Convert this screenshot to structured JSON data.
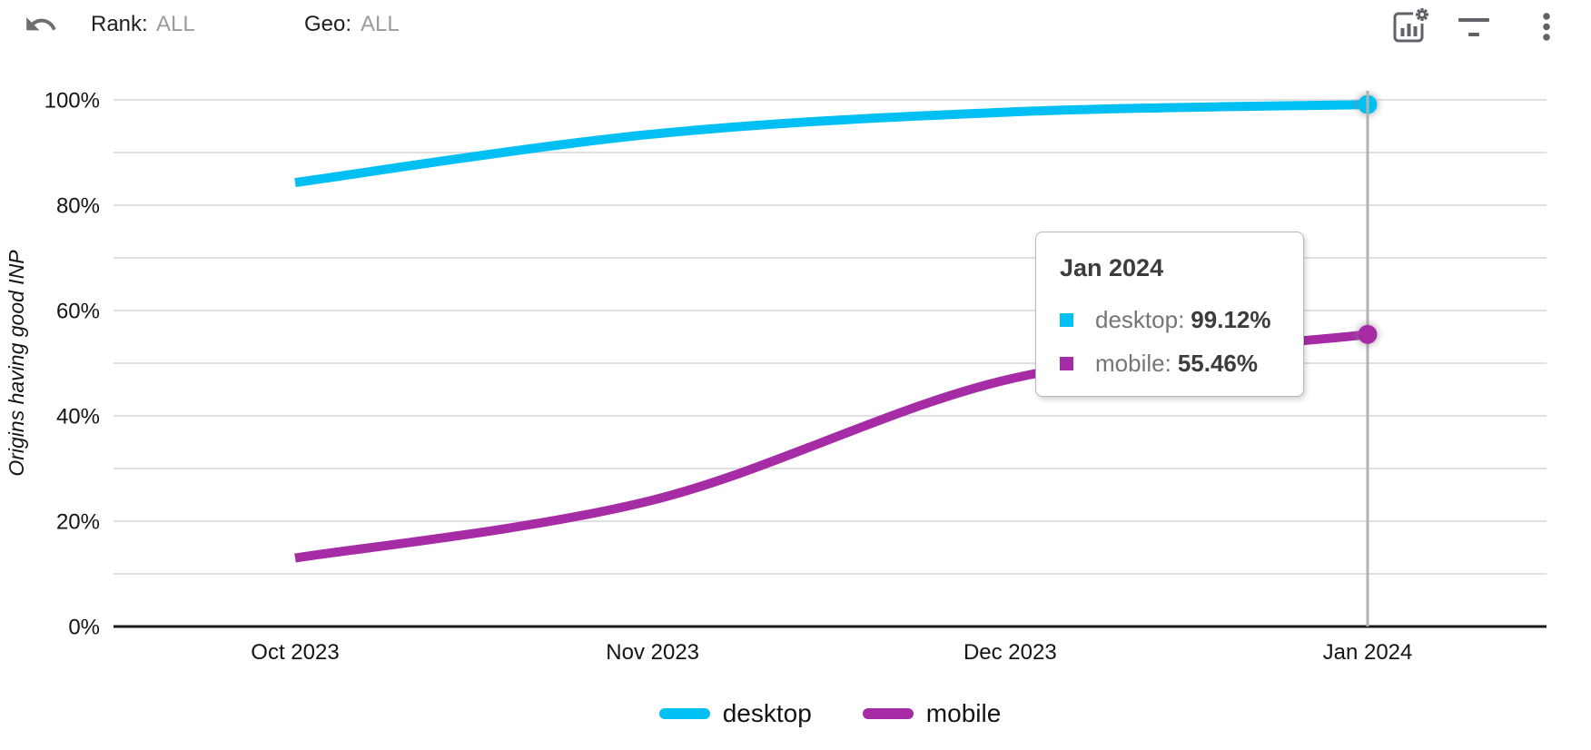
{
  "toolbar": {
    "rank_label": "Rank:",
    "rank_value": "ALL",
    "geo_label": "Geo:",
    "geo_value": "ALL",
    "icons": [
      "undo-icon",
      "chart-settings-icon",
      "filter-icon",
      "more-vert-icon"
    ]
  },
  "chart_data": {
    "type": "line",
    "title": "",
    "xlabel": "",
    "ylabel": "Origins having good INP",
    "categories": [
      "Oct 2023",
      "Nov 2023",
      "Dec 2023",
      "Jan 2024"
    ],
    "series": [
      {
        "name": "desktop",
        "color": "#00BFF2",
        "values": [
          84.3,
          93.5,
          97.7,
          99.12
        ]
      },
      {
        "name": "mobile",
        "color": "#A62CA6",
        "values": [
          13.0,
          24.0,
          47.0,
          55.46
        ]
      }
    ],
    "ylim": [
      0,
      100
    ],
    "grid_step_pct": 10,
    "ytick_labels": [
      "0%",
      "20%",
      "40%",
      "60%",
      "80%",
      "100%"
    ],
    "ytick_values": [
      0,
      20,
      40,
      60,
      80,
      100
    ],
    "grid": true,
    "legend_position": "bottom",
    "curve": "smooth",
    "selected_point": {
      "category": "Jan 2024",
      "index": 3,
      "desktop": "99.12%",
      "mobile": "55.46%"
    }
  },
  "tooltip": {
    "title": "Jan 2024",
    "rows": [
      {
        "label": "desktop:",
        "value": "99.12%",
        "color": "#00BFF2"
      },
      {
        "label": "mobile:",
        "value": "55.46%",
        "color": "#A62CA6"
      }
    ]
  },
  "legend": {
    "items": [
      {
        "label": "desktop",
        "color": "#00BFF2"
      },
      {
        "label": "mobile",
        "color": "#A62CA6"
      }
    ]
  }
}
